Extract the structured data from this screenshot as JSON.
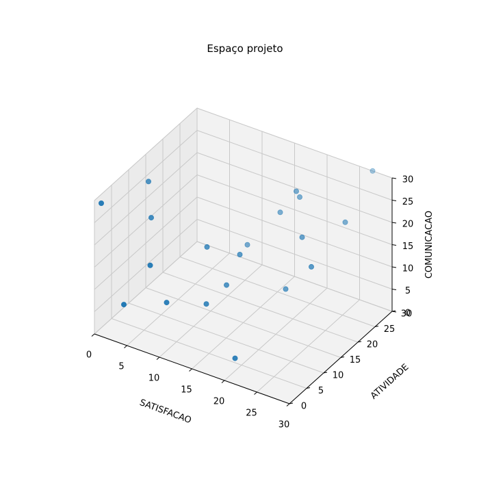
{
  "chart_data": {
    "type": "scatter",
    "title": "Espaço projeto",
    "xlabel": "SATISFACAO",
    "ylabel": "ATIVIDADE",
    "zlabel": "COMUNICACAO",
    "xlim": [
      0,
      30
    ],
    "ylim": [
      0,
      30
    ],
    "zlim": [
      0,
      30
    ],
    "xticks": [
      "0",
      "5",
      "10",
      "15",
      "20",
      "25",
      "30"
    ],
    "yticks": [
      "0",
      "5",
      "10",
      "15",
      "20",
      "25",
      "30"
    ],
    "zticks": [
      "0",
      "5",
      "10",
      "15",
      "20",
      "25",
      "30"
    ],
    "grid": true,
    "marker_color": "#1f77b4",
    "points": [
      {
        "x": 0,
        "y": 2,
        "z": 28
      },
      {
        "x": 2,
        "y": 12,
        "z": 27
      },
      {
        "x": 4,
        "y": 1,
        "z": 8
      },
      {
        "x": 4,
        "y": 9,
        "z": 22
      },
      {
        "x": 7,
        "y": 3,
        "z": 17
      },
      {
        "x": 9,
        "y": 4,
        "z": 9
      },
      {
        "x": 11,
        "y": 12,
        "z": 17
      },
      {
        "x": 13,
        "y": 20,
        "z": 13
      },
      {
        "x": 13,
        "y": 8,
        "z": 8
      },
      {
        "x": 14,
        "y": 12,
        "z": 10
      },
      {
        "x": 15,
        "y": 14,
        "z": 16
      },
      {
        "x": 17,
        "y": 22,
        "z": 21
      },
      {
        "x": 19,
        "y": 5,
        "z": 1
      },
      {
        "x": 20,
        "y": 21,
        "z": 28
      },
      {
        "x": 20,
        "y": 22,
        "z": 26
      },
      {
        "x": 21,
        "y": 16,
        "z": 10
      },
      {
        "x": 23,
        "y": 17,
        "z": 22
      },
      {
        "x": 26,
        "y": 14,
        "z": 19
      },
      {
        "x": 27,
        "y": 22,
        "z": 24
      },
      {
        "x": 27,
        "y": 30,
        "z": 30
      }
    ]
  }
}
